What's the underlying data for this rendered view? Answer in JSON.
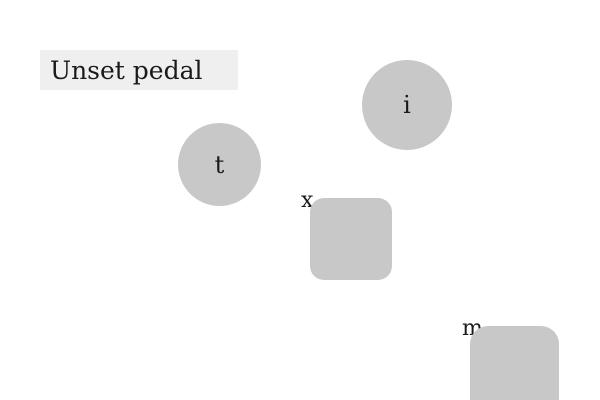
{
  "header": {
    "button_label": "Unset pedal"
  },
  "shapes": [
    {
      "label": "i",
      "kind": "circle"
    },
    {
      "label": "t",
      "kind": "circle"
    },
    {
      "label": "x",
      "kind": "rounded-square"
    },
    {
      "label": "m",
      "kind": "rounded-square"
    }
  ],
  "colors": {
    "shape_fill": "#c8c8c8",
    "button_fill": "#efefef",
    "background": "#ffffff",
    "text": "#1a1a1a"
  }
}
